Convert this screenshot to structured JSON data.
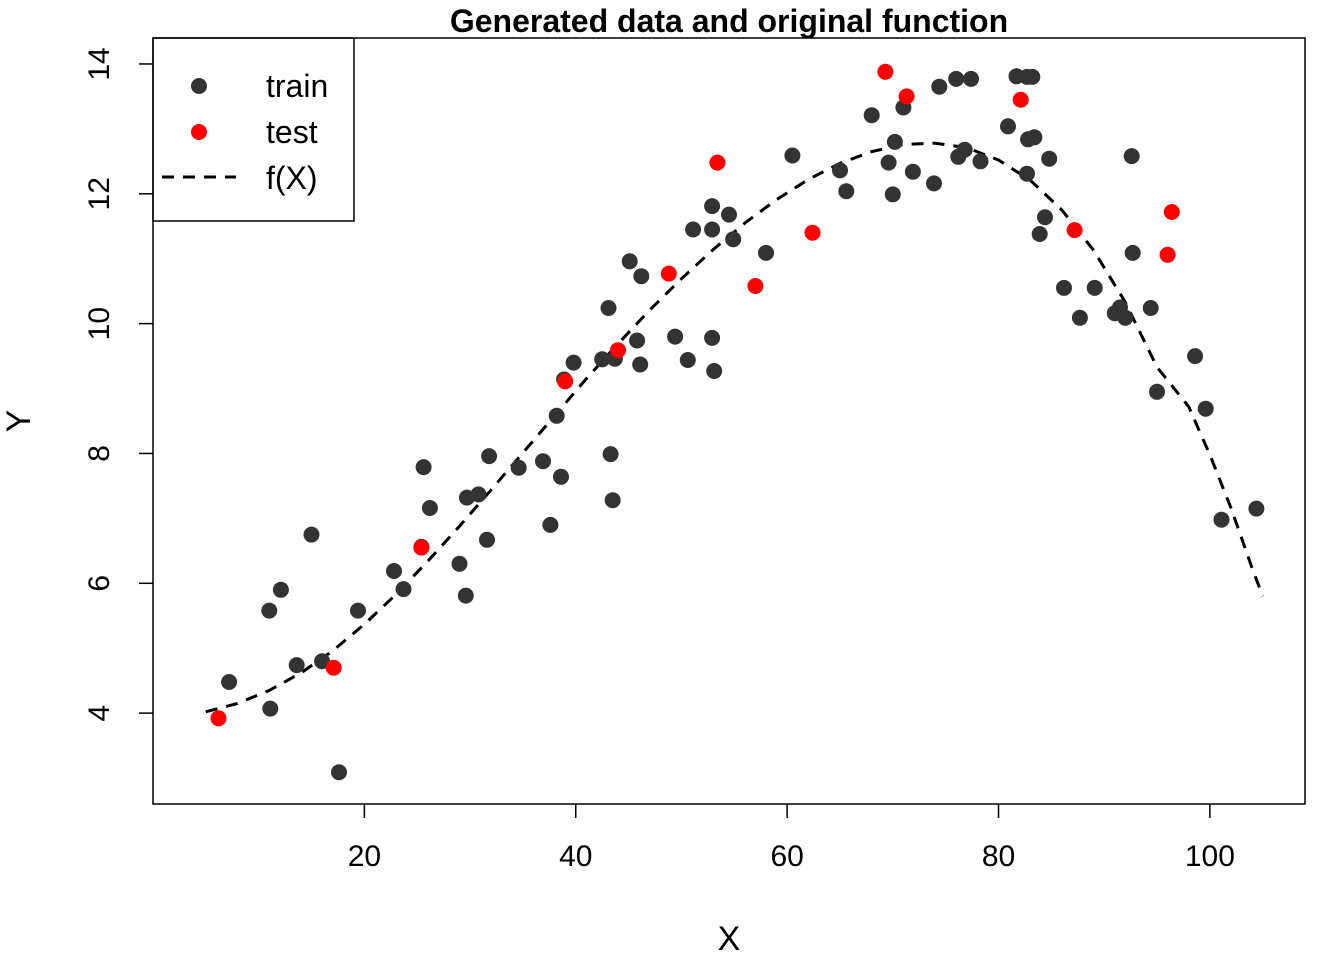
{
  "chart_data": {
    "type": "scatter",
    "title": "Generated data and original function",
    "xlabel": "X",
    "ylabel": "Y",
    "xlim": [
      0,
      109
    ],
    "ylim": [
      2.6,
      14.4
    ],
    "x_ticks": [
      20,
      40,
      60,
      80,
      100
    ],
    "y_ticks": [
      4,
      6,
      8,
      10,
      12,
      14
    ],
    "x_tick_labels": [
      "20",
      "40",
      "60",
      "80",
      "100"
    ],
    "y_tick_labels": [
      "4",
      "6",
      "8",
      "10",
      "12",
      "14"
    ],
    "grid": false,
    "legend": {
      "position": "top-left",
      "entries": [
        {
          "label": "train",
          "kind": "point",
          "color": "#333333"
        },
        {
          "label": "test",
          "kind": "point",
          "color": "#ff0000"
        },
        {
          "label": "f(X)",
          "kind": "dashed-line",
          "color": "#000000"
        }
      ]
    },
    "series": [
      {
        "name": "train",
        "color": "#333333",
        "points": [
          [
            7.2,
            4.48
          ],
          [
            11.0,
            5.58
          ],
          [
            11.1,
            4.07
          ],
          [
            12.1,
            5.9
          ],
          [
            13.6,
            4.74
          ],
          [
            15.0,
            6.75
          ],
          [
            16.0,
            4.8
          ],
          [
            17.6,
            3.09
          ],
          [
            19.4,
            5.58
          ],
          [
            22.8,
            6.19
          ],
          [
            23.7,
            5.91
          ],
          [
            25.4,
            6.56
          ],
          [
            25.6,
            7.79
          ],
          [
            26.2,
            7.16
          ],
          [
            29.0,
            6.3
          ],
          [
            29.6,
            5.81
          ],
          [
            29.7,
            7.32
          ],
          [
            30.8,
            7.37
          ],
          [
            31.6,
            6.67
          ],
          [
            31.8,
            7.96
          ],
          [
            34.6,
            7.78
          ],
          [
            36.9,
            7.88
          ],
          [
            37.6,
            6.9
          ],
          [
            38.2,
            8.58
          ],
          [
            38.6,
            7.64
          ],
          [
            38.9,
            9.14
          ],
          [
            39.8,
            9.4
          ],
          [
            42.5,
            9.45
          ],
          [
            43.1,
            10.24
          ],
          [
            43.3,
            7.99
          ],
          [
            43.5,
            7.28
          ],
          [
            43.7,
            9.46
          ],
          [
            45.1,
            10.96
          ],
          [
            45.8,
            9.74
          ],
          [
            46.1,
            9.37
          ],
          [
            46.2,
            10.73
          ],
          [
            49.4,
            9.8
          ],
          [
            50.6,
            9.44
          ],
          [
            51.1,
            11.45
          ],
          [
            52.9,
            11.45
          ],
          [
            52.9,
            11.81
          ],
          [
            52.9,
            9.78
          ],
          [
            53.1,
            9.27
          ],
          [
            54.5,
            11.68
          ],
          [
            54.9,
            11.3
          ],
          [
            58.0,
            11.09
          ],
          [
            60.5,
            12.59
          ],
          [
            65.0,
            12.36
          ],
          [
            65.6,
            12.04
          ],
          [
            68.0,
            13.21
          ],
          [
            69.6,
            12.48
          ],
          [
            70.0,
            11.99
          ],
          [
            70.2,
            12.8
          ],
          [
            71.0,
            13.33
          ],
          [
            71.9,
            12.34
          ],
          [
            73.9,
            12.16
          ],
          [
            74.4,
            13.65
          ],
          [
            76.0,
            13.77
          ],
          [
            76.2,
            12.57
          ],
          [
            76.8,
            12.68
          ],
          [
            77.4,
            13.77
          ],
          [
            78.3,
            12.5
          ],
          [
            80.9,
            13.04
          ],
          [
            81.7,
            13.81
          ],
          [
            82.7,
            13.8
          ],
          [
            82.7,
            12.31
          ],
          [
            82.8,
            12.84
          ],
          [
            83.2,
            13.8
          ],
          [
            83.4,
            12.87
          ],
          [
            83.9,
            11.38
          ],
          [
            84.4,
            11.64
          ],
          [
            84.8,
            12.54
          ],
          [
            86.2,
            10.55
          ],
          [
            87.7,
            10.09
          ],
          [
            89.1,
            10.55
          ],
          [
            91.0,
            10.16
          ],
          [
            91.5,
            10.25
          ],
          [
            92.0,
            10.09
          ],
          [
            92.6,
            12.58
          ],
          [
            92.7,
            11.09
          ],
          [
            94.4,
            10.24
          ],
          [
            95.0,
            8.95
          ],
          [
            98.6,
            9.5
          ],
          [
            99.6,
            8.69
          ],
          [
            101.1,
            6.98
          ],
          [
            104.4,
            7.15
          ]
        ]
      },
      {
        "name": "test",
        "color": "#ff0000",
        "points": [
          [
            6.2,
            3.92
          ],
          [
            17.1,
            4.7
          ],
          [
            25.4,
            6.55
          ],
          [
            39.0,
            9.11
          ],
          [
            44.0,
            9.59
          ],
          [
            48.8,
            10.77
          ],
          [
            53.4,
            12.48
          ],
          [
            57.0,
            10.58
          ],
          [
            62.4,
            11.4
          ],
          [
            69.3,
            13.88
          ],
          [
            71.3,
            13.5
          ],
          [
            82.1,
            13.45
          ],
          [
            87.2,
            11.44
          ],
          [
            96.0,
            11.06
          ],
          [
            96.4,
            11.72
          ]
        ]
      },
      {
        "name": "f(X)",
        "color": "#000000",
        "line_style": "dashed",
        "points": [
          [
            5,
            4.02
          ],
          [
            8,
            4.15
          ],
          [
            11,
            4.35
          ],
          [
            14,
            4.62
          ],
          [
            17,
            4.96
          ],
          [
            20,
            5.37
          ],
          [
            23,
            5.83
          ],
          [
            26,
            6.34
          ],
          [
            29,
            6.88
          ],
          [
            32,
            7.44
          ],
          [
            35,
            8.01
          ],
          [
            38,
            8.58
          ],
          [
            41,
            9.15
          ],
          [
            44,
            9.69
          ],
          [
            47,
            10.21
          ],
          [
            50,
            10.69
          ],
          [
            53,
            11.14
          ],
          [
            56,
            11.55
          ],
          [
            59,
            11.91
          ],
          [
            62,
            12.22
          ],
          [
            65,
            12.47
          ],
          [
            68,
            12.65
          ],
          [
            71,
            12.76
          ],
          [
            74,
            12.78
          ],
          [
            77,
            12.71
          ],
          [
            80,
            12.52
          ],
          [
            83,
            12.21
          ],
          [
            86,
            11.75
          ],
          [
            89,
            11.13
          ],
          [
            92,
            10.33
          ],
          [
            95,
            9.33
          ],
          [
            98,
            8.72
          ],
          [
            100,
            7.98
          ],
          [
            102,
            7.16
          ],
          [
            104,
            6.23
          ],
          [
            105,
            5.8
          ]
        ]
      }
    ]
  }
}
